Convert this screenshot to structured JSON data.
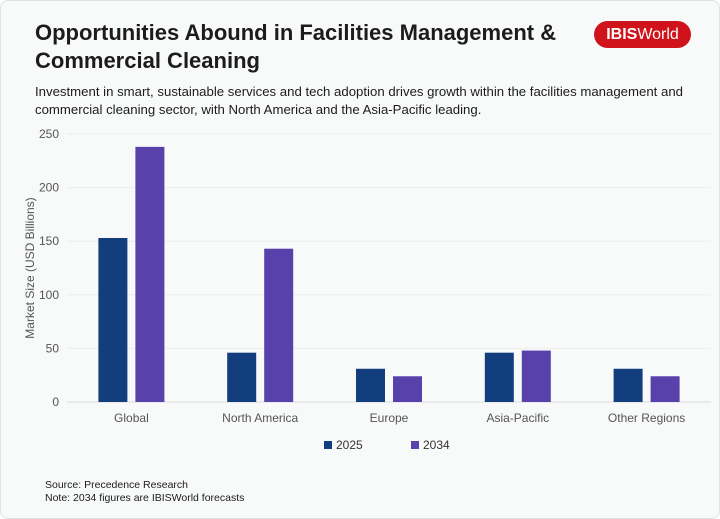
{
  "header": {
    "title": "Opportunities Abound in Facilities Management & Commercial Cleaning",
    "logo_text": "IBISWorld",
    "subtitle": "Investment in smart, sustainable services and tech adoption drives growth within the facilities management and commercial cleaning sector, with North America and the Asia-Pacific leading."
  },
  "footer": {
    "source": "Source: Precedence Research",
    "note": "Note: 2034 figures are IBISWorld forecasts"
  },
  "colors": {
    "brand": "#d0121b",
    "s2025": "#123e7e",
    "s2034": "#5941ab"
  },
  "chart_data": {
    "type": "bar",
    "title": "",
    "xlabel": "",
    "ylabel": "Market Size (USD Billions)",
    "ylim": [
      0,
      250
    ],
    "yticks": [
      0,
      50,
      100,
      150,
      200,
      250
    ],
    "grid": true,
    "legend": "bottom",
    "categories": [
      "Global",
      "North America",
      "Europe",
      "Asia-Pacific",
      "Other Regions"
    ],
    "series": [
      {
        "name": "2025",
        "color": "#123e7e",
        "values": [
          153,
          46,
          31,
          46,
          31
        ]
      },
      {
        "name": "2034",
        "color": "#5941ab",
        "values": [
          238,
          143,
          24,
          48,
          24
        ]
      }
    ]
  }
}
